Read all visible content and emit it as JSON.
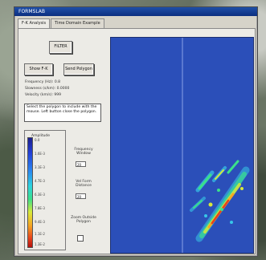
{
  "window": {
    "title": "FORMSLAB",
    "tabs": [
      {
        "label": "F-K Analysis",
        "active": true
      },
      {
        "label": "Time Domain Example",
        "active": false
      }
    ]
  },
  "controls": {
    "filter_label": "FILTER",
    "show_fk_label": "Show F-K",
    "send_polygon_label": "Send Polygon",
    "info_lines": [
      "Frequency (Hz): 0.8",
      "Slowness (s/km): 0.0000",
      "Velocity (km/s): 999"
    ],
    "instruction": "Select the polygon to include with the mouse. Left button close the polygon."
  },
  "legend": {
    "title": "Amplitude",
    "ticks": [
      "0.0",
      "1.6E-3",
      "3.1E-3",
      "4.7E-3",
      "6.3E-3",
      "7.8E-3",
      "9.4E-3",
      "1.1E-2",
      "1.3E-2"
    ]
  },
  "fields": {
    "frequency_label": "Frequency Window",
    "frequency_value": "20",
    "velocity_label": "Vel Form Distance",
    "velocity_value": "20",
    "zoom_label": "Zoom Outside Polygon"
  },
  "plot": {
    "background": "#2b4fb9",
    "divider_color": "#8aa2e6"
  }
}
